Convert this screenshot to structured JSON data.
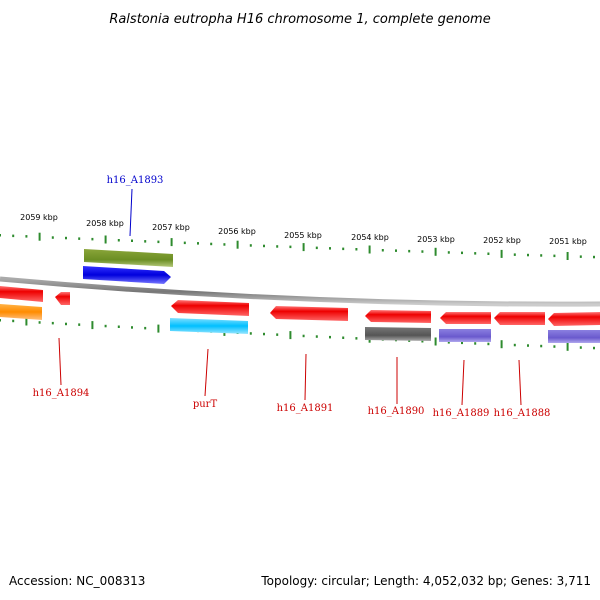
{
  "title": "Ralstonia eutropha H16 chromosome 1, complete genome",
  "footer": {
    "accession": "Accession: NC_008313",
    "topology": "Topology: circular; Length: 4,052,032 bp; Genes: 3,711"
  },
  "scale_labels": [
    "2059 kbp",
    "2058 kbp",
    "2057 kbp",
    "2056 kbp",
    "2055 kbp",
    "2054 kbp",
    "2053 kbp",
    "2052 kbp",
    "2051 kbp"
  ],
  "gene_labels": [
    "h16_A1893",
    "h16_A1894",
    "purT",
    "h16_A1891",
    "h16_A1890",
    "h16_A1889",
    "h16_A1888"
  ],
  "colors": {
    "backbone": "#888888",
    "ticks": "#2e8b2e",
    "red": "#ee0000",
    "blue": "#0000dd",
    "olive": "#6b8e23",
    "cyan": "#00bfff",
    "orange": "#ff8c00",
    "gray": "#555555",
    "purple": "#6a5acd",
    "label_red": "#cc0000",
    "label_blue": "#0000cc"
  }
}
